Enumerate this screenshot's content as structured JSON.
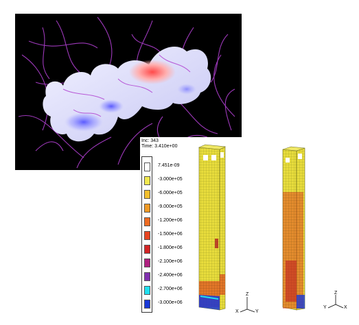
{
  "colors": {
    "panel_background": "#000000",
    "surface_positive": "#ff3030",
    "surface_neutral": "#ffffff",
    "surface_negative": "#3030ff",
    "streamline": "#b040d0",
    "mesh_primary": "#e8dc3c"
  },
  "simulation": {
    "inc": "Inc: 343",
    "time": "Time: 3.410e+00",
    "legend": [
      {
        "label": "7.451e-09",
        "color": "#ffffff"
      },
      {
        "label": "-3.000e+05",
        "color": "#f2e94e"
      },
      {
        "label": "-6.000e+05",
        "color": "#f4c02c"
      },
      {
        "label": "-9.000e+05",
        "color": "#f09a24"
      },
      {
        "label": "-1.200e+06",
        "color": "#ee6a20"
      },
      {
        "label": "-1.500e+06",
        "color": "#e84420"
      },
      {
        "label": "-1.800e+06",
        "color": "#d42424"
      },
      {
        "label": "-2.100e+06",
        "color": "#b02080"
      },
      {
        "label": "-2.400e+06",
        "color": "#8030b0"
      },
      {
        "label": "-2.700e+06",
        "color": "#20e0f0"
      },
      {
        "label": "-3.000e+06",
        "color": "#1838d8"
      }
    ],
    "triad_1": {
      "z": "Z",
      "y": "Y",
      "x": "X"
    },
    "triad_2": {
      "z": "Z",
      "y": "Y",
      "x": "X"
    }
  }
}
